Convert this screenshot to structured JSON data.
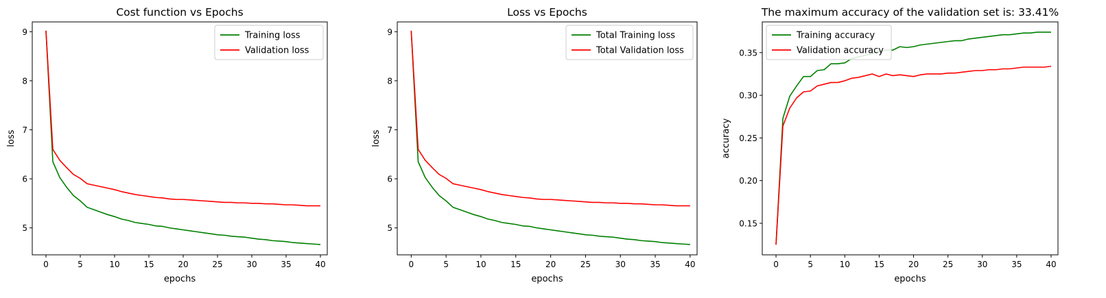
{
  "chart_data": [
    {
      "type": "line",
      "title": "Cost function vs Epochs",
      "xlabel": "epochs",
      "ylabel": "loss",
      "xlim": [
        -2,
        41
      ],
      "ylim": [
        4.45,
        9.2
      ],
      "xticks": [
        0,
        5,
        10,
        15,
        20,
        25,
        30,
        35,
        40
      ],
      "yticks": [
        5,
        6,
        7,
        8,
        9
      ],
      "ytick_decimals": 0,
      "grid": false,
      "legend_position": "top-right",
      "x": [
        0,
        1,
        2,
        3,
        4,
        5,
        6,
        7,
        8,
        9,
        10,
        11,
        12,
        13,
        14,
        15,
        16,
        17,
        18,
        19,
        20,
        21,
        22,
        23,
        24,
        25,
        26,
        27,
        28,
        29,
        30,
        31,
        32,
        33,
        34,
        35,
        36,
        37,
        38,
        39,
        40
      ],
      "series": [
        {
          "name": "Training loss",
          "color": "#008000",
          "values": [
            9.02,
            6.35,
            6.03,
            5.83,
            5.66,
            5.55,
            5.42,
            5.37,
            5.32,
            5.27,
            5.23,
            5.18,
            5.15,
            5.11,
            5.09,
            5.07,
            5.04,
            5.03,
            5.0,
            4.98,
            4.96,
            4.94,
            4.92,
            4.9,
            4.88,
            4.86,
            4.85,
            4.83,
            4.82,
            4.81,
            4.79,
            4.77,
            4.76,
            4.74,
            4.73,
            4.72,
            4.7,
            4.69,
            4.68,
            4.67,
            4.66
          ]
        },
        {
          "name": "Validation loss",
          "color": "#ff0000",
          "values": [
            9.02,
            6.6,
            6.38,
            6.23,
            6.09,
            6.01,
            5.9,
            5.87,
            5.84,
            5.81,
            5.78,
            5.74,
            5.71,
            5.68,
            5.66,
            5.64,
            5.62,
            5.61,
            5.59,
            5.58,
            5.58,
            5.57,
            5.56,
            5.55,
            5.54,
            5.53,
            5.52,
            5.52,
            5.51,
            5.51,
            5.5,
            5.5,
            5.49,
            5.49,
            5.48,
            5.47,
            5.47,
            5.46,
            5.45,
            5.45,
            5.45
          ]
        }
      ]
    },
    {
      "type": "line",
      "title": "Loss vs Epochs",
      "xlabel": "epochs",
      "ylabel": "loss",
      "xlim": [
        -2,
        41
      ],
      "ylim": [
        4.45,
        9.2
      ],
      "xticks": [
        0,
        5,
        10,
        15,
        20,
        25,
        30,
        35,
        40
      ],
      "yticks": [
        5,
        6,
        7,
        8,
        9
      ],
      "ytick_decimals": 0,
      "grid": false,
      "legend_position": "top-right",
      "x": [
        0,
        1,
        2,
        3,
        4,
        5,
        6,
        7,
        8,
        9,
        10,
        11,
        12,
        13,
        14,
        15,
        16,
        17,
        18,
        19,
        20,
        21,
        22,
        23,
        24,
        25,
        26,
        27,
        28,
        29,
        30,
        31,
        32,
        33,
        34,
        35,
        36,
        37,
        38,
        39,
        40
      ],
      "series": [
        {
          "name": "Total Training loss",
          "color": "#008000",
          "values": [
            9.02,
            6.35,
            6.03,
            5.83,
            5.66,
            5.55,
            5.42,
            5.37,
            5.32,
            5.27,
            5.23,
            5.18,
            5.15,
            5.11,
            5.09,
            5.07,
            5.04,
            5.03,
            5.0,
            4.98,
            4.96,
            4.94,
            4.92,
            4.9,
            4.88,
            4.86,
            4.85,
            4.83,
            4.82,
            4.81,
            4.79,
            4.77,
            4.76,
            4.74,
            4.73,
            4.72,
            4.7,
            4.69,
            4.68,
            4.67,
            4.66
          ]
        },
        {
          "name": "Total Validation loss",
          "color": "#ff0000",
          "values": [
            9.02,
            6.6,
            6.38,
            6.23,
            6.09,
            6.01,
            5.9,
            5.87,
            5.84,
            5.81,
            5.78,
            5.74,
            5.71,
            5.68,
            5.66,
            5.64,
            5.62,
            5.61,
            5.59,
            5.58,
            5.58,
            5.57,
            5.56,
            5.55,
            5.54,
            5.53,
            5.52,
            5.52,
            5.51,
            5.51,
            5.5,
            5.5,
            5.49,
            5.49,
            5.48,
            5.47,
            5.47,
            5.46,
            5.45,
            5.45,
            5.45
          ]
        }
      ]
    },
    {
      "type": "line",
      "title": "The maximum accuracy of the validation set is: 33.41%",
      "xlabel": "epochs",
      "ylabel": "accuracy",
      "xlim": [
        -2,
        41
      ],
      "ylim": [
        0.113,
        0.386
      ],
      "xticks": [
        0,
        5,
        10,
        15,
        20,
        25,
        30,
        35,
        40
      ],
      "yticks": [
        0.15,
        0.2,
        0.25,
        0.3,
        0.35
      ],
      "ytick_decimals": 2,
      "grid": false,
      "legend_position": "top-left",
      "x": [
        0,
        1,
        2,
        3,
        4,
        5,
        6,
        7,
        8,
        9,
        10,
        11,
        12,
        13,
        14,
        15,
        16,
        17,
        18,
        19,
        20,
        21,
        22,
        23,
        24,
        25,
        26,
        27,
        28,
        29,
        30,
        31,
        32,
        33,
        34,
        35,
        36,
        37,
        38,
        39,
        40
      ],
      "series": [
        {
          "name": "Training accuracy",
          "color": "#008000",
          "values": [
            0.125,
            0.273,
            0.299,
            0.311,
            0.322,
            0.322,
            0.329,
            0.33,
            0.337,
            0.337,
            0.338,
            0.343,
            0.345,
            0.347,
            0.349,
            0.351,
            0.353,
            0.353,
            0.357,
            0.356,
            0.357,
            0.359,
            0.36,
            0.361,
            0.362,
            0.363,
            0.364,
            0.364,
            0.366,
            0.367,
            0.368,
            0.369,
            0.37,
            0.371,
            0.371,
            0.372,
            0.373,
            0.373,
            0.374,
            0.374,
            0.374
          ]
        },
        {
          "name": "Validation accuracy",
          "color": "#ff0000",
          "values": [
            0.125,
            0.264,
            0.285,
            0.297,
            0.304,
            0.305,
            0.311,
            0.313,
            0.315,
            0.315,
            0.317,
            0.32,
            0.321,
            0.323,
            0.325,
            0.322,
            0.325,
            0.323,
            0.324,
            0.323,
            0.322,
            0.324,
            0.325,
            0.325,
            0.325,
            0.326,
            0.326,
            0.327,
            0.328,
            0.329,
            0.329,
            0.33,
            0.33,
            0.331,
            0.331,
            0.332,
            0.333,
            0.333,
            0.333,
            0.333,
            0.334
          ]
        }
      ]
    }
  ]
}
